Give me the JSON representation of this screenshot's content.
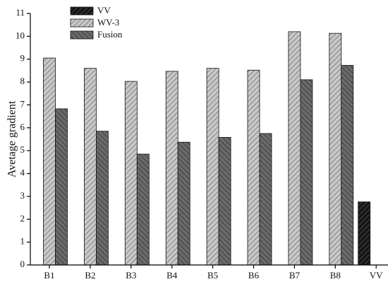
{
  "chart_data": {
    "type": "bar",
    "y_label": "Avetage gradient",
    "categories": [
      "B1",
      "B2",
      "B3",
      "B4",
      "B5",
      "B6",
      "B7",
      "B8",
      "VV"
    ],
    "series": [
      {
        "name": "VV",
        "color": "#2a2a2a",
        "values": [
          null,
          null,
          null,
          null,
          null,
          null,
          null,
          null,
          2.76
        ]
      },
      {
        "name": "WV-3",
        "color": "#c8c8c8",
        "values": [
          9.05,
          8.6,
          8.03,
          8.47,
          8.6,
          8.52,
          10.2,
          10.13,
          null
        ]
      },
      {
        "name": "Fusion",
        "color": "#6a6a6a",
        "values": [
          6.83,
          5.85,
          4.85,
          5.37,
          5.58,
          5.75,
          8.1,
          8.73,
          null
        ]
      }
    ],
    "ylim": [
      0,
      11
    ],
    "yticks": [
      0,
      1,
      2,
      3,
      4,
      5,
      6,
      7,
      8,
      9,
      10,
      11
    ],
    "legend": "upper-left"
  }
}
